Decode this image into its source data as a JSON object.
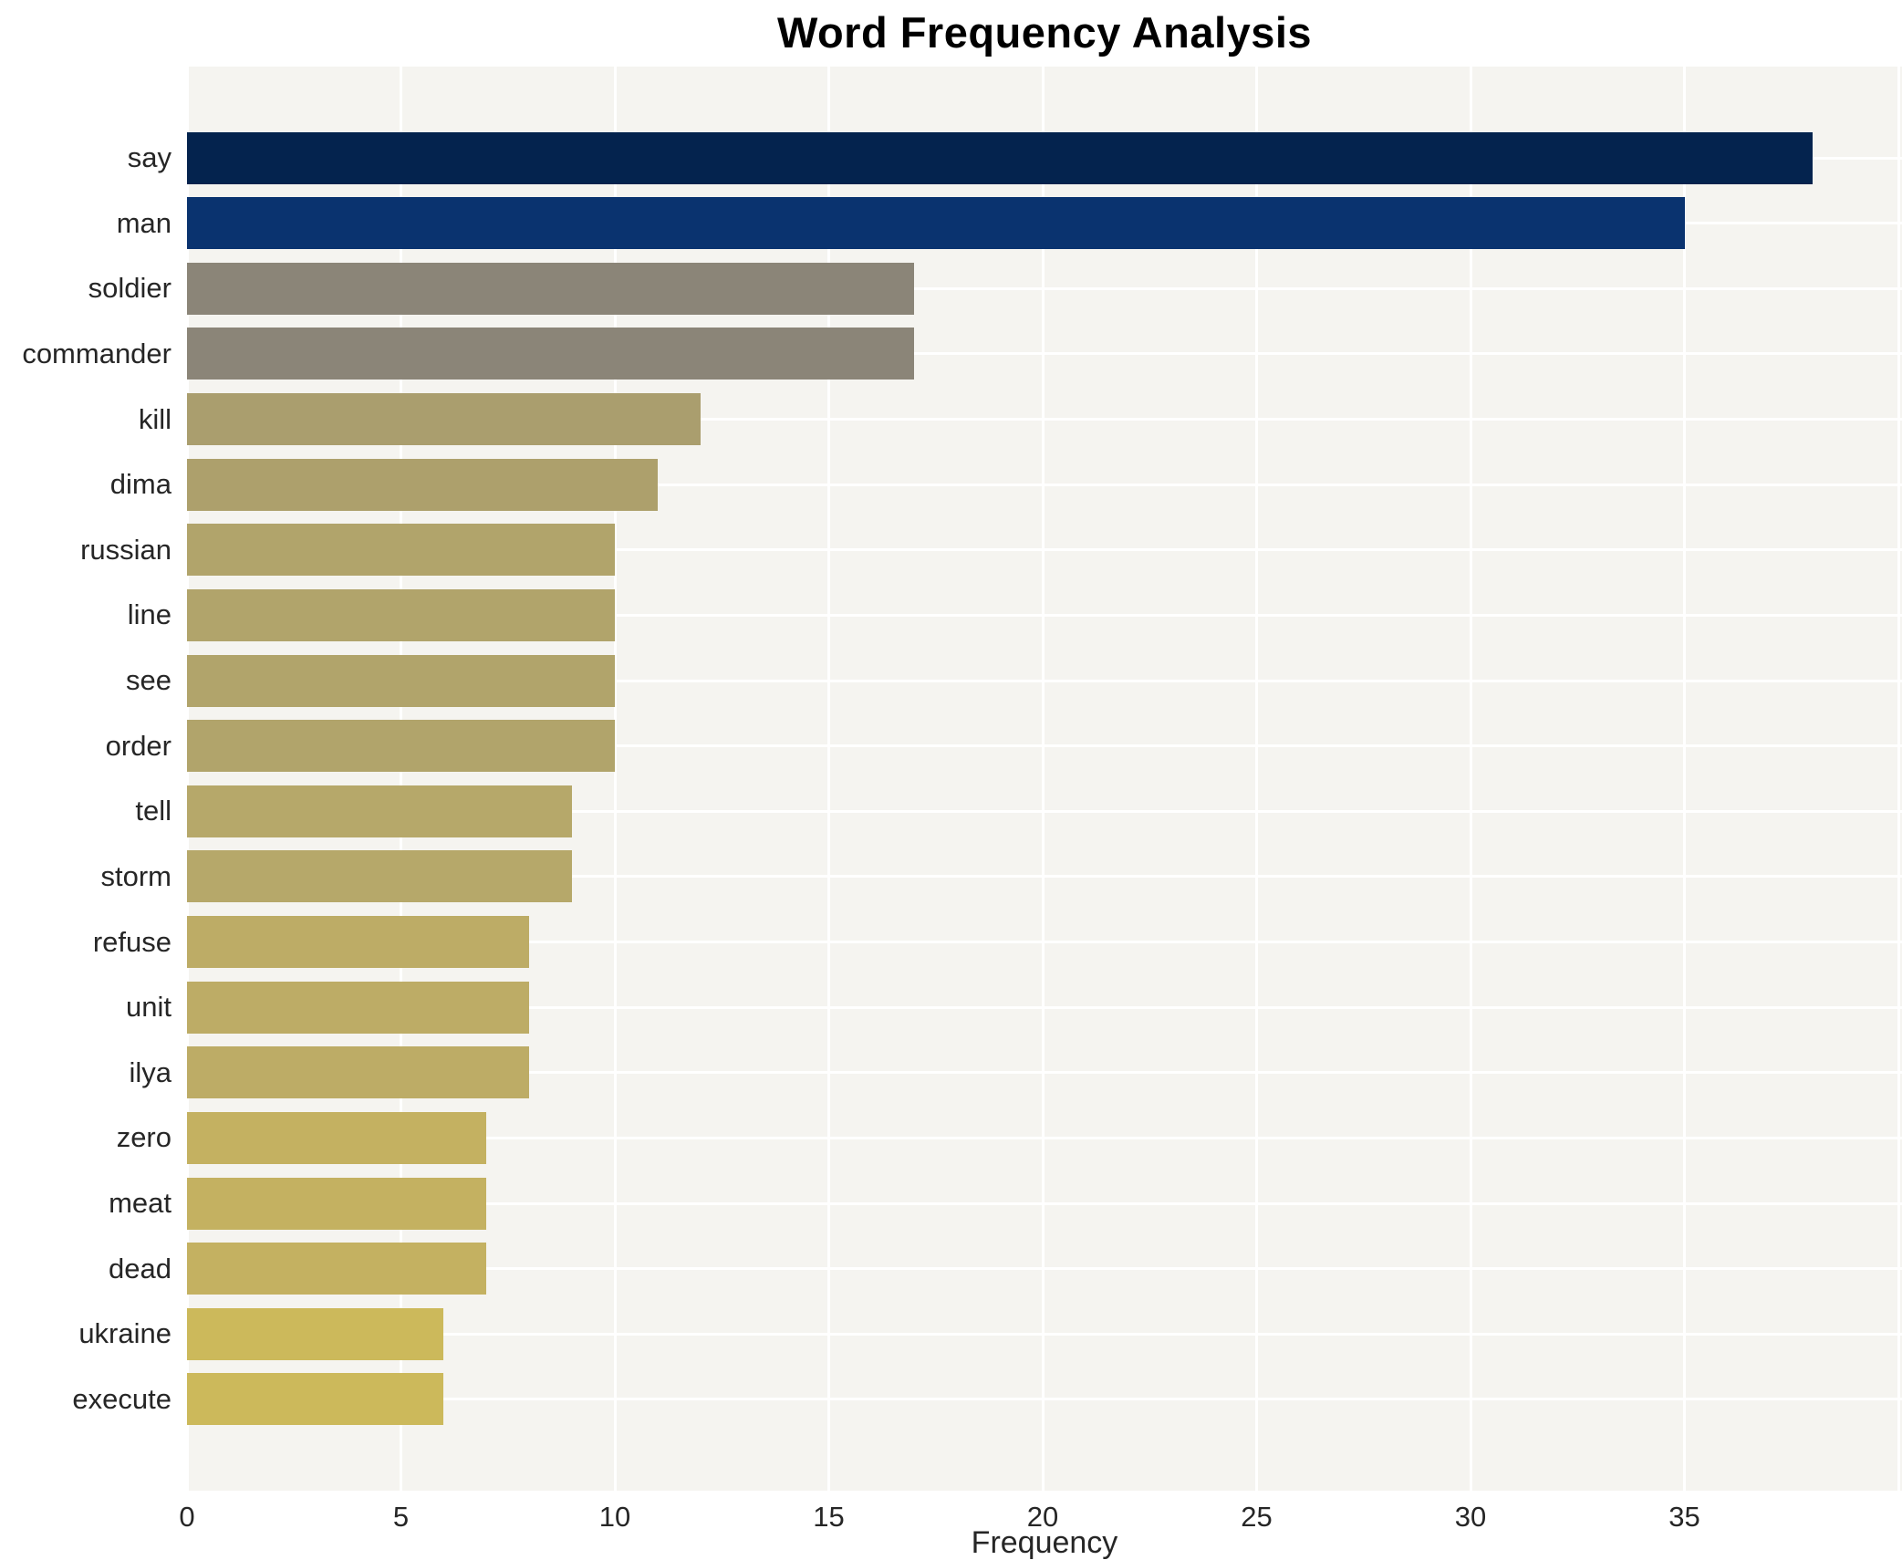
{
  "chart_data": {
    "type": "bar",
    "orientation": "horizontal",
    "title": "Word Frequency Analysis",
    "xlabel": "Frequency",
    "ylabel": "",
    "xlim": [
      0,
      40
    ],
    "x_ticks": [
      0,
      5,
      10,
      15,
      20,
      25,
      30,
      35
    ],
    "grid": true,
    "legend": false,
    "plot_background": "#f5f4f0",
    "gridline_color": "#ffffff",
    "text_color": "#262626",
    "title_color": "#000000",
    "categories": [
      "say",
      "man",
      "soldier",
      "commander",
      "kill",
      "dima",
      "russian",
      "line",
      "see",
      "order",
      "tell",
      "storm",
      "refuse",
      "unit",
      "ilya",
      "zero",
      "meat",
      "dead",
      "ukraine",
      "execute"
    ],
    "values": [
      38,
      35,
      17,
      17,
      12,
      11,
      10,
      10,
      10,
      10,
      9,
      9,
      8,
      8,
      8,
      7,
      7,
      7,
      6,
      6
    ],
    "bar_colors": [
      "#04234e",
      "#0a336f",
      "#8b8578",
      "#8b8578",
      "#aa9e6e",
      "#ada06c",
      "#b1a46b",
      "#b1a46b",
      "#b1a46b",
      "#b1a46b",
      "#b6a86a",
      "#b6a86a",
      "#bdac66",
      "#bdac66",
      "#bdac66",
      "#c4b161",
      "#c4b161",
      "#c4b161",
      "#ccb95b",
      "#ccb95b"
    ]
  }
}
